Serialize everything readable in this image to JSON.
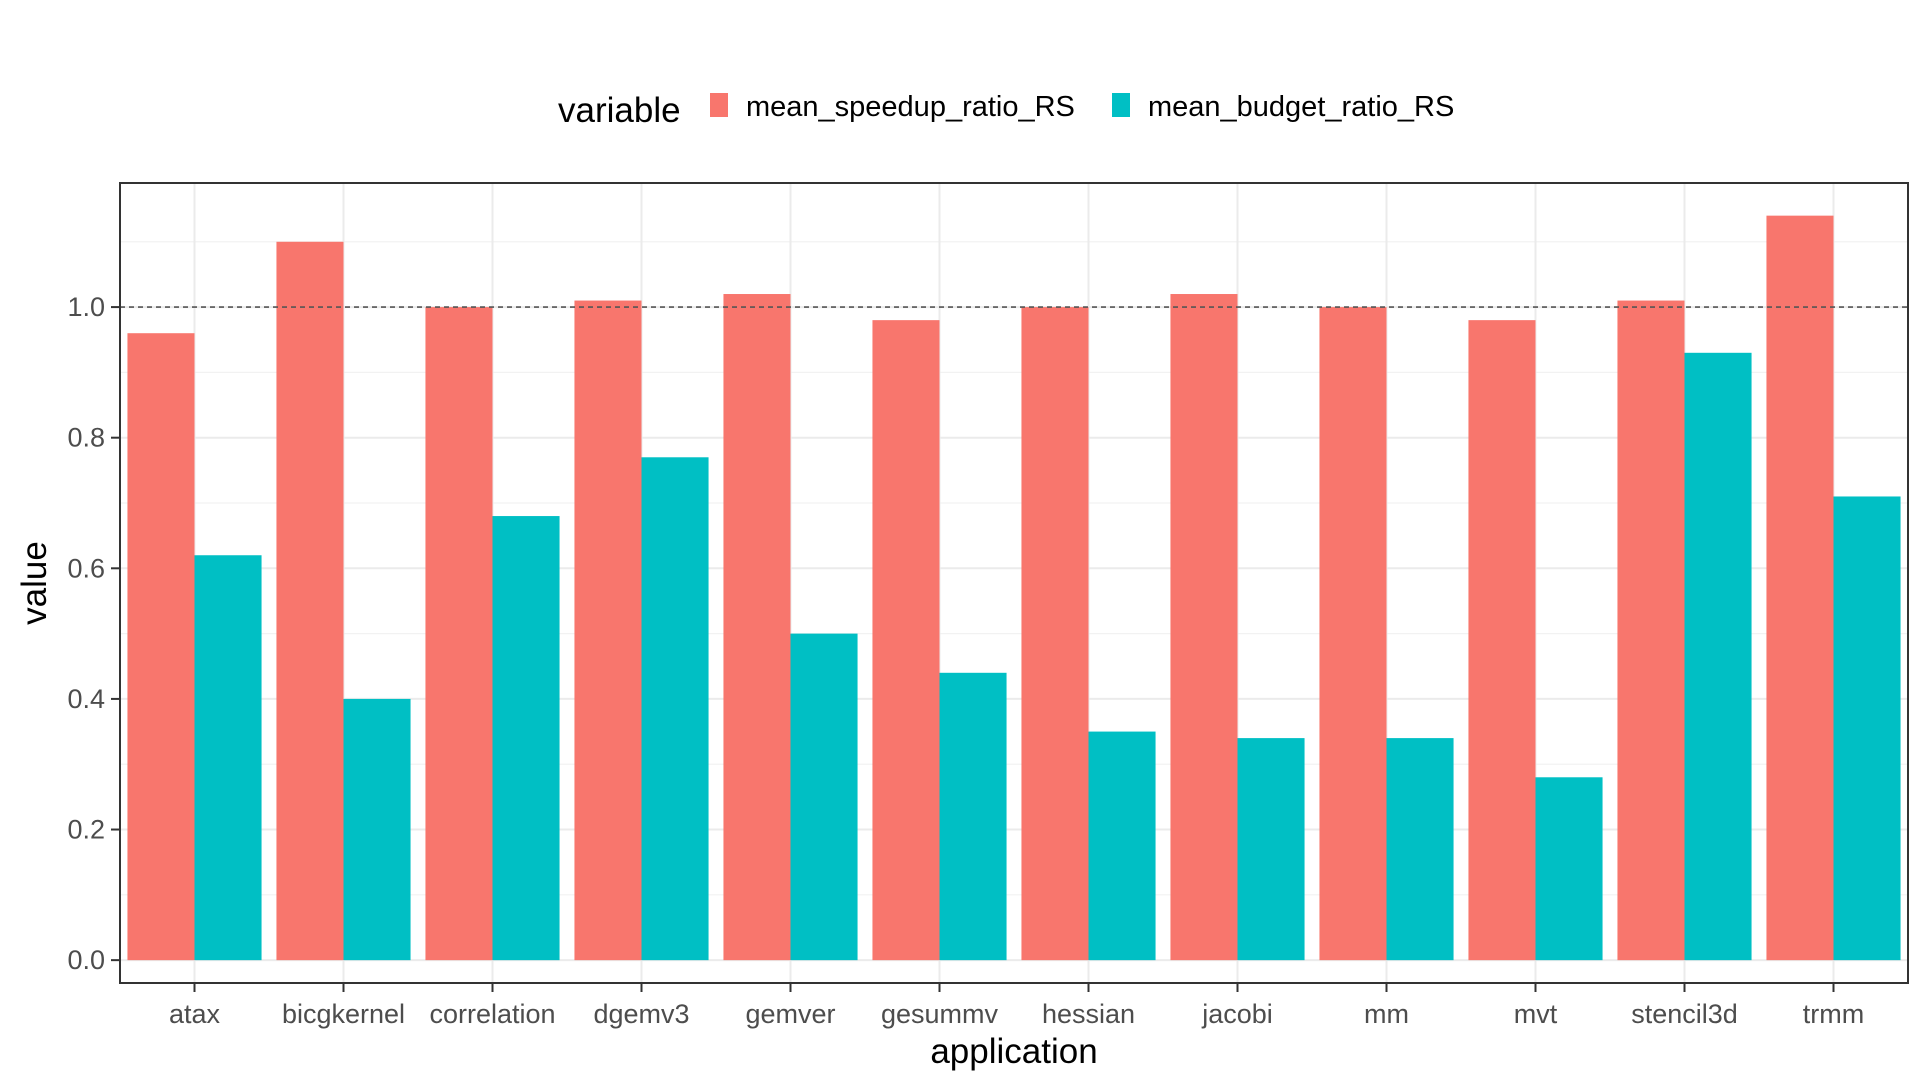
{
  "chart_data": {
    "type": "bar",
    "xlabel": "application",
    "ylabel": "value",
    "ylim": [
      -0.035,
      1.19
    ],
    "yticks": [
      0.0,
      0.2,
      0.4,
      0.6,
      0.8,
      1.0
    ],
    "ytick_labels": [
      "0.0",
      "0.2",
      "0.4",
      "0.6",
      "0.8",
      "1.0"
    ],
    "reference_line": 1.0,
    "grid": true,
    "legend": {
      "title": "variable",
      "position": "top"
    },
    "categories": [
      "atax",
      "bicgkernel",
      "correlation",
      "dgemv3",
      "gemver",
      "gesummv",
      "hessian",
      "jacobi",
      "mm",
      "mvt",
      "stencil3d",
      "trmm"
    ],
    "series": [
      {
        "name": "mean_speedup_ratio_RS",
        "color": "#F8766D",
        "values": [
          0.96,
          1.1,
          1.0,
          1.01,
          1.02,
          0.98,
          1.0,
          1.02,
          1.0,
          0.98,
          1.01,
          1.14
        ]
      },
      {
        "name": "mean_budget_ratio_RS",
        "color": "#00BFC4",
        "values": [
          0.62,
          0.4,
          0.68,
          0.77,
          0.5,
          0.44,
          0.35,
          0.34,
          0.34,
          0.28,
          0.93,
          0.71
        ]
      }
    ]
  }
}
